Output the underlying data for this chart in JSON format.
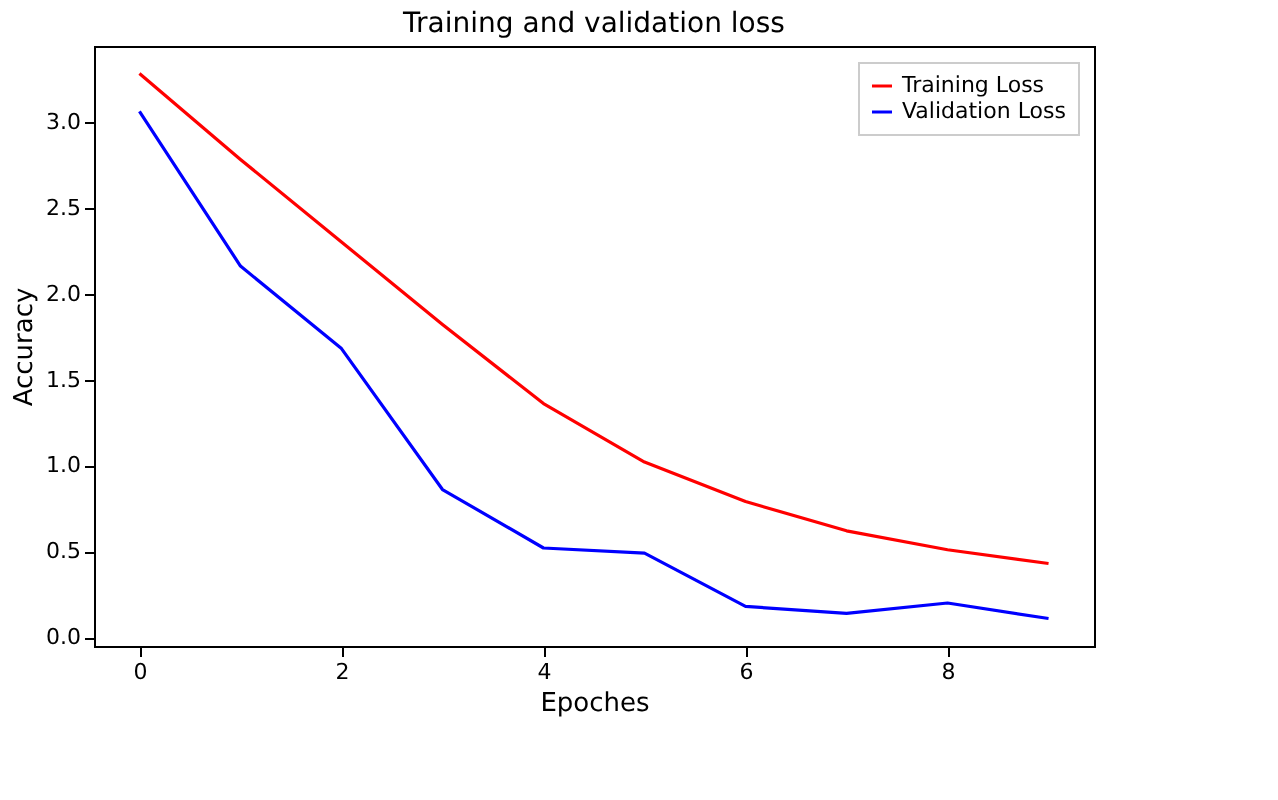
{
  "chart_data": {
    "type": "line",
    "title": "Training and validation loss",
    "xlabel": "Epoches",
    "ylabel": "Accuracy",
    "x": [
      0,
      1,
      2,
      3,
      4,
      5,
      6,
      7,
      8,
      9
    ],
    "series": [
      {
        "name": "Training Loss",
        "color": "#ff0000",
        "values": [
          3.28,
          2.78,
          2.3,
          1.82,
          1.36,
          1.02,
          0.79,
          0.62,
          0.51,
          0.43
        ]
      },
      {
        "name": "Validation Loss",
        "color": "#0000ff",
        "values": [
          3.06,
          2.16,
          1.68,
          0.86,
          0.52,
          0.49,
          0.18,
          0.14,
          0.2,
          0.11
        ]
      }
    ],
    "xlim": [
      -0.45,
      9.45
    ],
    "ylim": [
      -0.05,
      3.44
    ],
    "xticks": [
      0,
      2,
      4,
      6,
      8
    ],
    "yticks": [
      {
        "value": 0,
        "label": "0.0"
      },
      {
        "value": 0.5,
        "label": "0.5"
      },
      {
        "value": 1,
        "label": "1.0"
      },
      {
        "value": 1.5,
        "label": "1.5"
      },
      {
        "value": 2,
        "label": "2.0"
      },
      {
        "value": 2.5,
        "label": "2.5"
      },
      {
        "value": 3,
        "label": "3.0"
      }
    ],
    "legend": "top right",
    "grid": false,
    "marker": "none",
    "line_style": "solid"
  }
}
